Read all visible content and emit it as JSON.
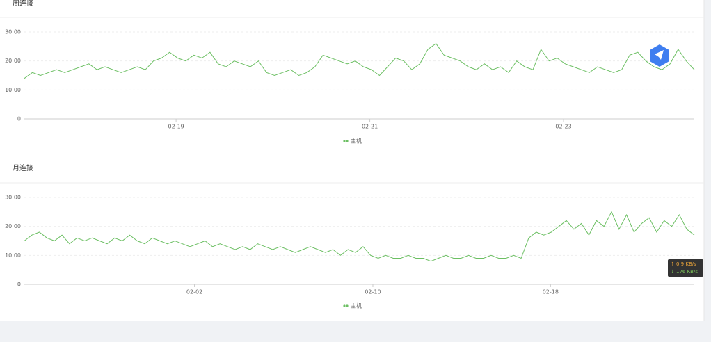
{
  "chart_data": [
    {
      "type": "line",
      "title": "周连接",
      "series": [
        {
          "name": "主机",
          "color": "#6cbf63",
          "values": [
            14,
            16,
            15,
            16,
            17,
            16,
            17,
            18,
            19,
            17,
            18,
            17,
            16,
            17,
            18,
            17,
            20,
            21,
            23,
            21,
            20,
            22,
            21,
            23,
            19,
            18,
            20,
            19,
            18,
            20,
            16,
            15,
            16,
            17,
            15,
            16,
            18,
            22,
            21,
            20,
            19,
            20,
            18,
            17,
            15,
            18,
            21,
            20,
            17,
            19,
            24,
            26,
            22,
            21,
            20,
            18,
            17,
            19,
            17,
            18,
            16,
            20,
            18,
            17,
            24,
            20,
            21,
            19,
            18,
            17,
            16,
            18,
            17,
            16,
            17,
            22,
            23,
            20,
            18,
            17,
            19,
            24,
            20,
            17
          ]
        }
      ],
      "xlim": [
        0,
        83
      ],
      "xticks": [
        {
          "value": 18.8,
          "label": "02-19"
        },
        {
          "value": 42.8,
          "label": "02-21"
        },
        {
          "value": 66.8,
          "label": "02-23"
        }
      ],
      "ylim": [
        0,
        30
      ],
      "yticks": [
        0,
        {
          "value": 10,
          "label": "10.00"
        },
        {
          "value": 20,
          "label": "20.00"
        },
        {
          "value": 30,
          "label": "30.00"
        }
      ],
      "grid": true
    },
    {
      "type": "line",
      "title": "月连接",
      "series": [
        {
          "name": "主机",
          "color": "#6cbf63",
          "values": [
            15,
            17,
            18,
            16,
            15,
            17,
            14,
            16,
            15,
            16,
            15,
            14,
            16,
            15,
            17,
            15,
            14,
            16,
            15,
            14,
            15,
            14,
            13,
            14,
            15,
            13,
            14,
            13,
            12,
            13,
            12,
            14,
            13,
            12,
            13,
            12,
            11,
            12,
            13,
            12,
            11,
            12,
            10,
            12,
            11,
            13,
            10,
            9,
            10,
            9,
            9,
            10,
            9,
            9,
            8,
            9,
            10,
            9,
            9,
            10,
            9,
            9,
            10,
            9,
            9,
            10,
            9,
            16,
            18,
            17,
            18,
            20,
            22,
            19,
            21,
            17,
            22,
            20,
            25,
            19,
            24,
            18,
            21,
            23,
            18,
            22,
            20,
            24,
            19,
            17
          ]
        }
      ],
      "xlim": [
        0,
        89
      ],
      "xticks": [
        {
          "value": 22.6,
          "label": "02-02"
        },
        {
          "value": 46.3,
          "label": "02-10"
        },
        {
          "value": 69.9,
          "label": "02-18"
        }
      ],
      "ylim": [
        0,
        30
      ],
      "yticks": [
        0,
        {
          "value": 10,
          "label": "10.00"
        },
        {
          "value": 20,
          "label": "20.00"
        },
        {
          "value": 30,
          "label": "30.00"
        }
      ],
      "grid": true
    }
  ],
  "net_widget": {
    "up": "0.9 KB/s",
    "down": "176 KB/s"
  }
}
